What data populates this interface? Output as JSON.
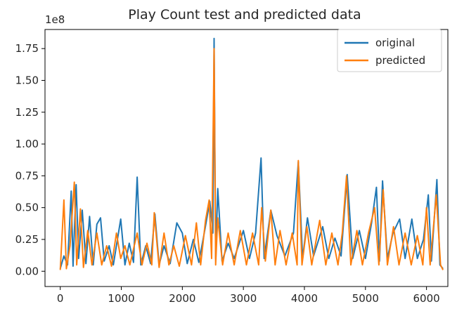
{
  "chart_data": {
    "type": "line",
    "title": "Play Count test and predicted data",
    "xlabel": "",
    "ylabel": "",
    "offset_text": "1e8",
    "xlim": [
      -250,
      6350
    ],
    "ylim": [
      -0.12,
      1.9
    ],
    "x_ticks": [
      0,
      1000,
      2000,
      3000,
      4000,
      5000,
      6000
    ],
    "x_tick_labels": [
      "0",
      "1000",
      "2000",
      "3000",
      "4000",
      "5000",
      "6000"
    ],
    "y_ticks": [
      0.0,
      0.25,
      0.5,
      0.75,
      1.0,
      1.25,
      1.5,
      1.75
    ],
    "y_tick_labels": [
      "0.00",
      "0.25",
      "0.50",
      "0.75",
      "1.00",
      "1.25",
      "1.50",
      "1.75"
    ],
    "legend": {
      "position": "top-right"
    },
    "series": [
      {
        "name": "original",
        "color": "#1f77b4",
        "points": [
          [
            0,
            0.02
          ],
          [
            60,
            0.12
          ],
          [
            120,
            0.05
          ],
          [
            180,
            0.63
          ],
          [
            210,
            0.04
          ],
          [
            260,
            0.68
          ],
          [
            300,
            0.1
          ],
          [
            360,
            0.48
          ],
          [
            420,
            0.06
          ],
          [
            480,
            0.43
          ],
          [
            540,
            0.05
          ],
          [
            600,
            0.37
          ],
          [
            660,
            0.42
          ],
          [
            720,
            0.08
          ],
          [
            800,
            0.2
          ],
          [
            870,
            0.05
          ],
          [
            990,
            0.41
          ],
          [
            1060,
            0.05
          ],
          [
            1130,
            0.22
          ],
          [
            1200,
            0.07
          ],
          [
            1260,
            0.74
          ],
          [
            1320,
            0.05
          ],
          [
            1400,
            0.2
          ],
          [
            1480,
            0.06
          ],
          [
            1550,
            0.45
          ],
          [
            1620,
            0.05
          ],
          [
            1700,
            0.2
          ],
          [
            1800,
            0.06
          ],
          [
            1910,
            0.38
          ],
          [
            2000,
            0.3
          ],
          [
            2080,
            0.06
          ],
          [
            2180,
            0.25
          ],
          [
            2270,
            0.07
          ],
          [
            2370,
            0.33
          ],
          [
            2450,
            0.55
          ],
          [
            2500,
            0.3
          ],
          [
            2520,
            1.83
          ],
          [
            2545,
            0.1
          ],
          [
            2580,
            0.65
          ],
          [
            2650,
            0.08
          ],
          [
            2750,
            0.22
          ],
          [
            2850,
            0.1
          ],
          [
            3000,
            0.32
          ],
          [
            3100,
            0.1
          ],
          [
            3200,
            0.3
          ],
          [
            3290,
            0.89
          ],
          [
            3340,
            0.1
          ],
          [
            3450,
            0.48
          ],
          [
            3550,
            0.28
          ],
          [
            3680,
            0.12
          ],
          [
            3820,
            0.3
          ],
          [
            3900,
            0.86
          ],
          [
            3970,
            0.1
          ],
          [
            4050,
            0.42
          ],
          [
            4150,
            0.12
          ],
          [
            4300,
            0.35
          ],
          [
            4400,
            0.1
          ],
          [
            4500,
            0.26
          ],
          [
            4600,
            0.12
          ],
          [
            4700,
            0.76
          ],
          [
            4790,
            0.1
          ],
          [
            4900,
            0.32
          ],
          [
            5000,
            0.1
          ],
          [
            5100,
            0.38
          ],
          [
            5180,
            0.66
          ],
          [
            5230,
            0.08
          ],
          [
            5280,
            0.71
          ],
          [
            5360,
            0.1
          ],
          [
            5450,
            0.3
          ],
          [
            5560,
            0.41
          ],
          [
            5650,
            0.1
          ],
          [
            5760,
            0.41
          ],
          [
            5850,
            0.1
          ],
          [
            5950,
            0.25
          ],
          [
            6030,
            0.6
          ],
          [
            6080,
            0.08
          ],
          [
            6170,
            0.72
          ],
          [
            6220,
            0.05
          ],
          [
            6270,
            0.02
          ]
        ]
      },
      {
        "name": "predicted",
        "color": "#ff7f0e",
        "points": [
          [
            0,
            0.01
          ],
          [
            60,
            0.56
          ],
          [
            100,
            0.02
          ],
          [
            160,
            0.2
          ],
          [
            230,
            0.7
          ],
          [
            270,
            0.05
          ],
          [
            330,
            0.49
          ],
          [
            380,
            0.03
          ],
          [
            450,
            0.32
          ],
          [
            520,
            0.05
          ],
          [
            600,
            0.3
          ],
          [
            680,
            0.05
          ],
          [
            760,
            0.2
          ],
          [
            840,
            0.04
          ],
          [
            920,
            0.3
          ],
          [
            990,
            0.1
          ],
          [
            1060,
            0.2
          ],
          [
            1140,
            0.05
          ],
          [
            1260,
            0.3
          ],
          [
            1340,
            0.05
          ],
          [
            1420,
            0.22
          ],
          [
            1500,
            0.05
          ],
          [
            1540,
            0.46
          ],
          [
            1620,
            0.03
          ],
          [
            1700,
            0.3
          ],
          [
            1780,
            0.05
          ],
          [
            1860,
            0.2
          ],
          [
            1950,
            0.04
          ],
          [
            2050,
            0.28
          ],
          [
            2150,
            0.05
          ],
          [
            2230,
            0.38
          ],
          [
            2300,
            0.05
          ],
          [
            2380,
            0.4
          ],
          [
            2440,
            0.56
          ],
          [
            2480,
            0.1
          ],
          [
            2520,
            1.75
          ],
          [
            2545,
            0.05
          ],
          [
            2580,
            0.42
          ],
          [
            2660,
            0.05
          ],
          [
            2750,
            0.3
          ],
          [
            2850,
            0.05
          ],
          [
            2950,
            0.32
          ],
          [
            3050,
            0.05
          ],
          [
            3150,
            0.3
          ],
          [
            3250,
            0.05
          ],
          [
            3300,
            0.5
          ],
          [
            3360,
            0.08
          ],
          [
            3450,
            0.48
          ],
          [
            3520,
            0.05
          ],
          [
            3600,
            0.32
          ],
          [
            3700,
            0.05
          ],
          [
            3800,
            0.3
          ],
          [
            3880,
            0.05
          ],
          [
            3900,
            0.87
          ],
          [
            3960,
            0.05
          ],
          [
            4040,
            0.35
          ],
          [
            4120,
            0.05
          ],
          [
            4250,
            0.4
          ],
          [
            4350,
            0.05
          ],
          [
            4450,
            0.3
          ],
          [
            4550,
            0.05
          ],
          [
            4620,
            0.3
          ],
          [
            4690,
            0.75
          ],
          [
            4760,
            0.05
          ],
          [
            4860,
            0.32
          ],
          [
            4950,
            0.05
          ],
          [
            5050,
            0.3
          ],
          [
            5150,
            0.5
          ],
          [
            5220,
            0.05
          ],
          [
            5290,
            0.64
          ],
          [
            5360,
            0.05
          ],
          [
            5460,
            0.35
          ],
          [
            5550,
            0.05
          ],
          [
            5650,
            0.3
          ],
          [
            5750,
            0.05
          ],
          [
            5850,
            0.28
          ],
          [
            5940,
            0.05
          ],
          [
            6000,
            0.5
          ],
          [
            6060,
            0.05
          ],
          [
            6160,
            0.6
          ],
          [
            6230,
            0.05
          ],
          [
            6270,
            0.01
          ]
        ]
      }
    ]
  }
}
